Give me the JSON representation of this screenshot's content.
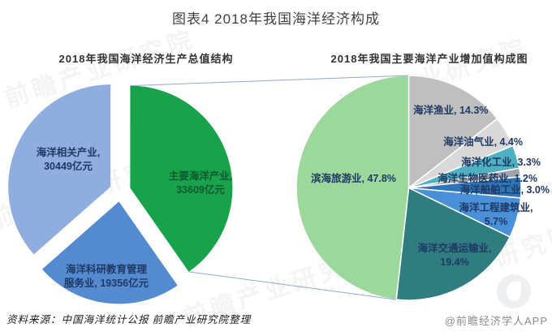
{
  "page": {
    "title": "图表4 2018年我国海洋经济构成",
    "source_note": "资料来源：中国海洋统计公报 前瞻产业研究院整理",
    "credit": "@前瞻经济学人APP",
    "watermark": "前瞻产业研究院"
  },
  "chart_data": [
    {
      "type": "pie",
      "title": "2018年我国海洋经济生产总值结构",
      "unit": "亿元",
      "exploded": true,
      "categories": [
        "主要海洋产业",
        "海洋科研教育管理服务业",
        "海洋相关产业"
      ],
      "values": [
        33609,
        19356,
        30449
      ],
      "colors": [
        "#17A24B",
        "#548BD0",
        "#8FAEDF"
      ],
      "ids": [
        "major-marine-industries",
        "marine-research-education-services",
        "marine-related-industries"
      ],
      "labels": {
        "related1": "海洋相关产业,",
        "related2": "30449亿元",
        "major1": "主要海洋产业,",
        "major2": "33609亿元",
        "research1": "海洋科研教育管理",
        "research2": "服务业, 19356亿元"
      }
    },
    {
      "type": "pie",
      "title": "2018年我国主要海洋产业增加值构成图",
      "unit": "%",
      "exploded": false,
      "categories": [
        "海洋渔业",
        "海洋油气业",
        "海洋化工业",
        "海洋生物医药业",
        "海洋船舶工业",
        "海洋工程建筑业",
        "海洋交通运输业",
        "滨海旅游业"
      ],
      "values": [
        14.3,
        4.4,
        3.3,
        1.2,
        3.0,
        5.7,
        19.4,
        47.8
      ],
      "colors": [
        "#BFBFBF",
        "#D9D9D9",
        "#4FB0C1",
        "#A0A4A8",
        "#2E75B6",
        "#4A90D9",
        "#2F7D7F",
        "#9CD89C"
      ],
      "ids": [
        "marine-fishery",
        "marine-oil-gas",
        "marine-chemical",
        "marine-biomedicine",
        "marine-shipbuilding",
        "marine-engineering-construction",
        "marine-transportation",
        "coastal-tourism"
      ],
      "labels": {
        "tourism": "滨海旅游业, 47.8%",
        "fishery": "海洋渔业, 14.3%",
        "oilgas": "海洋油气业, 4.4%",
        "chemical": "海洋化工业, 3.3%",
        "biomed": "海洋生物医药业, 1.2%",
        "ship": "海洋船舶工业, 3.0%",
        "eng1": "海洋工程建筑业,",
        "eng2": "5.7%",
        "trans1": "海洋交通运输业,",
        "trans2": "19.4%"
      }
    }
  ]
}
